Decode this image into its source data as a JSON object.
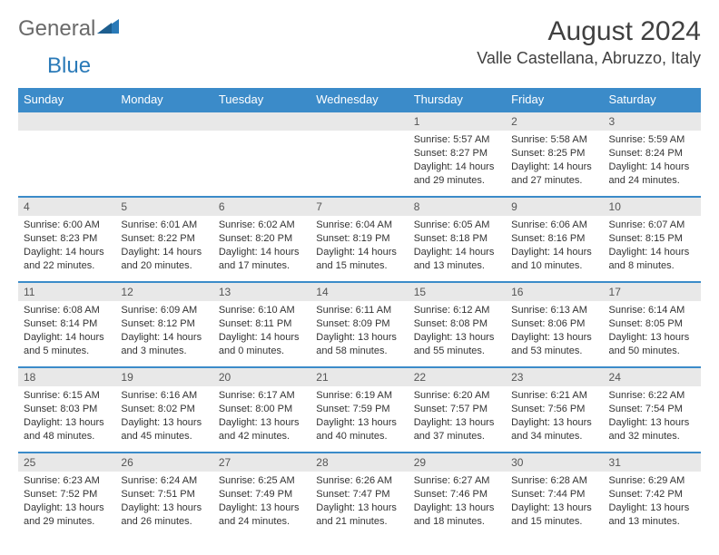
{
  "brand": {
    "part1": "General",
    "part2": "Blue"
  },
  "title": "August 2024",
  "location": "Valle Castellana, Abruzzo, Italy",
  "colors": {
    "header_bg": "#3b8bc9",
    "header_text": "#ffffff",
    "row_border": "#3b8bc9",
    "daynum_bg": "#e8e8e8",
    "body_text": "#333333",
    "title_text": "#404040",
    "logo_gray": "#6a6a6a",
    "logo_blue": "#2a7ab8",
    "page_bg": "#ffffff"
  },
  "typography": {
    "title_fontsize": 30,
    "location_fontsize": 18,
    "dayhead_fontsize": 13,
    "daynum_fontsize": 12,
    "cell_fontsize": 11
  },
  "dayheads": [
    "Sunday",
    "Monday",
    "Tuesday",
    "Wednesday",
    "Thursday",
    "Friday",
    "Saturday"
  ],
  "weeks": [
    [
      null,
      null,
      null,
      null,
      {
        "n": "1",
        "sr": "Sunrise: 5:57 AM",
        "ss": "Sunset: 8:27 PM",
        "dl": "Daylight: 14 hours and 29 minutes."
      },
      {
        "n": "2",
        "sr": "Sunrise: 5:58 AM",
        "ss": "Sunset: 8:25 PM",
        "dl": "Daylight: 14 hours and 27 minutes."
      },
      {
        "n": "3",
        "sr": "Sunrise: 5:59 AM",
        "ss": "Sunset: 8:24 PM",
        "dl": "Daylight: 14 hours and 24 minutes."
      }
    ],
    [
      {
        "n": "4",
        "sr": "Sunrise: 6:00 AM",
        "ss": "Sunset: 8:23 PM",
        "dl": "Daylight: 14 hours and 22 minutes."
      },
      {
        "n": "5",
        "sr": "Sunrise: 6:01 AM",
        "ss": "Sunset: 8:22 PM",
        "dl": "Daylight: 14 hours and 20 minutes."
      },
      {
        "n": "6",
        "sr": "Sunrise: 6:02 AM",
        "ss": "Sunset: 8:20 PM",
        "dl": "Daylight: 14 hours and 17 minutes."
      },
      {
        "n": "7",
        "sr": "Sunrise: 6:04 AM",
        "ss": "Sunset: 8:19 PM",
        "dl": "Daylight: 14 hours and 15 minutes."
      },
      {
        "n": "8",
        "sr": "Sunrise: 6:05 AM",
        "ss": "Sunset: 8:18 PM",
        "dl": "Daylight: 14 hours and 13 minutes."
      },
      {
        "n": "9",
        "sr": "Sunrise: 6:06 AM",
        "ss": "Sunset: 8:16 PM",
        "dl": "Daylight: 14 hours and 10 minutes."
      },
      {
        "n": "10",
        "sr": "Sunrise: 6:07 AM",
        "ss": "Sunset: 8:15 PM",
        "dl": "Daylight: 14 hours and 8 minutes."
      }
    ],
    [
      {
        "n": "11",
        "sr": "Sunrise: 6:08 AM",
        "ss": "Sunset: 8:14 PM",
        "dl": "Daylight: 14 hours and 5 minutes."
      },
      {
        "n": "12",
        "sr": "Sunrise: 6:09 AM",
        "ss": "Sunset: 8:12 PM",
        "dl": "Daylight: 14 hours and 3 minutes."
      },
      {
        "n": "13",
        "sr": "Sunrise: 6:10 AM",
        "ss": "Sunset: 8:11 PM",
        "dl": "Daylight: 14 hours and 0 minutes."
      },
      {
        "n": "14",
        "sr": "Sunrise: 6:11 AM",
        "ss": "Sunset: 8:09 PM",
        "dl": "Daylight: 13 hours and 58 minutes."
      },
      {
        "n": "15",
        "sr": "Sunrise: 6:12 AM",
        "ss": "Sunset: 8:08 PM",
        "dl": "Daylight: 13 hours and 55 minutes."
      },
      {
        "n": "16",
        "sr": "Sunrise: 6:13 AM",
        "ss": "Sunset: 8:06 PM",
        "dl": "Daylight: 13 hours and 53 minutes."
      },
      {
        "n": "17",
        "sr": "Sunrise: 6:14 AM",
        "ss": "Sunset: 8:05 PM",
        "dl": "Daylight: 13 hours and 50 minutes."
      }
    ],
    [
      {
        "n": "18",
        "sr": "Sunrise: 6:15 AM",
        "ss": "Sunset: 8:03 PM",
        "dl": "Daylight: 13 hours and 48 minutes."
      },
      {
        "n": "19",
        "sr": "Sunrise: 6:16 AM",
        "ss": "Sunset: 8:02 PM",
        "dl": "Daylight: 13 hours and 45 minutes."
      },
      {
        "n": "20",
        "sr": "Sunrise: 6:17 AM",
        "ss": "Sunset: 8:00 PM",
        "dl": "Daylight: 13 hours and 42 minutes."
      },
      {
        "n": "21",
        "sr": "Sunrise: 6:19 AM",
        "ss": "Sunset: 7:59 PM",
        "dl": "Daylight: 13 hours and 40 minutes."
      },
      {
        "n": "22",
        "sr": "Sunrise: 6:20 AM",
        "ss": "Sunset: 7:57 PM",
        "dl": "Daylight: 13 hours and 37 minutes."
      },
      {
        "n": "23",
        "sr": "Sunrise: 6:21 AM",
        "ss": "Sunset: 7:56 PM",
        "dl": "Daylight: 13 hours and 34 minutes."
      },
      {
        "n": "24",
        "sr": "Sunrise: 6:22 AM",
        "ss": "Sunset: 7:54 PM",
        "dl": "Daylight: 13 hours and 32 minutes."
      }
    ],
    [
      {
        "n": "25",
        "sr": "Sunrise: 6:23 AM",
        "ss": "Sunset: 7:52 PM",
        "dl": "Daylight: 13 hours and 29 minutes."
      },
      {
        "n": "26",
        "sr": "Sunrise: 6:24 AM",
        "ss": "Sunset: 7:51 PM",
        "dl": "Daylight: 13 hours and 26 minutes."
      },
      {
        "n": "27",
        "sr": "Sunrise: 6:25 AM",
        "ss": "Sunset: 7:49 PM",
        "dl": "Daylight: 13 hours and 24 minutes."
      },
      {
        "n": "28",
        "sr": "Sunrise: 6:26 AM",
        "ss": "Sunset: 7:47 PM",
        "dl": "Daylight: 13 hours and 21 minutes."
      },
      {
        "n": "29",
        "sr": "Sunrise: 6:27 AM",
        "ss": "Sunset: 7:46 PM",
        "dl": "Daylight: 13 hours and 18 minutes."
      },
      {
        "n": "30",
        "sr": "Sunrise: 6:28 AM",
        "ss": "Sunset: 7:44 PM",
        "dl": "Daylight: 13 hours and 15 minutes."
      },
      {
        "n": "31",
        "sr": "Sunrise: 6:29 AM",
        "ss": "Sunset: 7:42 PM",
        "dl": "Daylight: 13 hours and 13 minutes."
      }
    ]
  ]
}
